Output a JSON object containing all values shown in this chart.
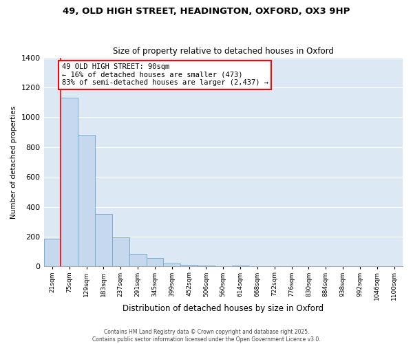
{
  "title1": "49, OLD HIGH STREET, HEADINGTON, OXFORD, OX3 9HP",
  "title2": "Size of property relative to detached houses in Oxford",
  "xlabel": "Distribution of detached houses by size in Oxford",
  "ylabel": "Number of detached properties",
  "bar_color": "#c5d8ee",
  "bar_edge_color": "#7aadd4",
  "background_color": "#dce9f5",
  "grid_color": "#ffffff",
  "categories": [
    "21sqm",
    "75sqm",
    "129sqm",
    "183sqm",
    "237sqm",
    "291sqm",
    "345sqm",
    "399sqm",
    "452sqm",
    "506sqm",
    "560sqm",
    "614sqm",
    "668sqm",
    "722sqm",
    "776sqm",
    "830sqm",
    "884sqm",
    "938sqm",
    "992sqm",
    "1046sqm",
    "1100sqm"
  ],
  "values": [
    185,
    1130,
    880,
    350,
    195,
    85,
    55,
    20,
    10,
    5,
    0,
    8,
    0,
    0,
    0,
    0,
    0,
    0,
    0,
    0,
    0
  ],
  "red_line_x": 0.5,
  "annotation_line1": "49 OLD HIGH STREET: 90sqm",
  "annotation_line2": "← 16% of detached houses are smaller (473)",
  "annotation_line3": "83% of semi-detached houses are larger (2,437) →",
  "ylim": [
    0,
    1400
  ],
  "yticks": [
    0,
    200,
    400,
    600,
    800,
    1000,
    1200,
    1400
  ],
  "footer1": "Contains HM Land Registry data © Crown copyright and database right 2025.",
  "footer2": "Contains public sector information licensed under the Open Government Licence v3.0."
}
